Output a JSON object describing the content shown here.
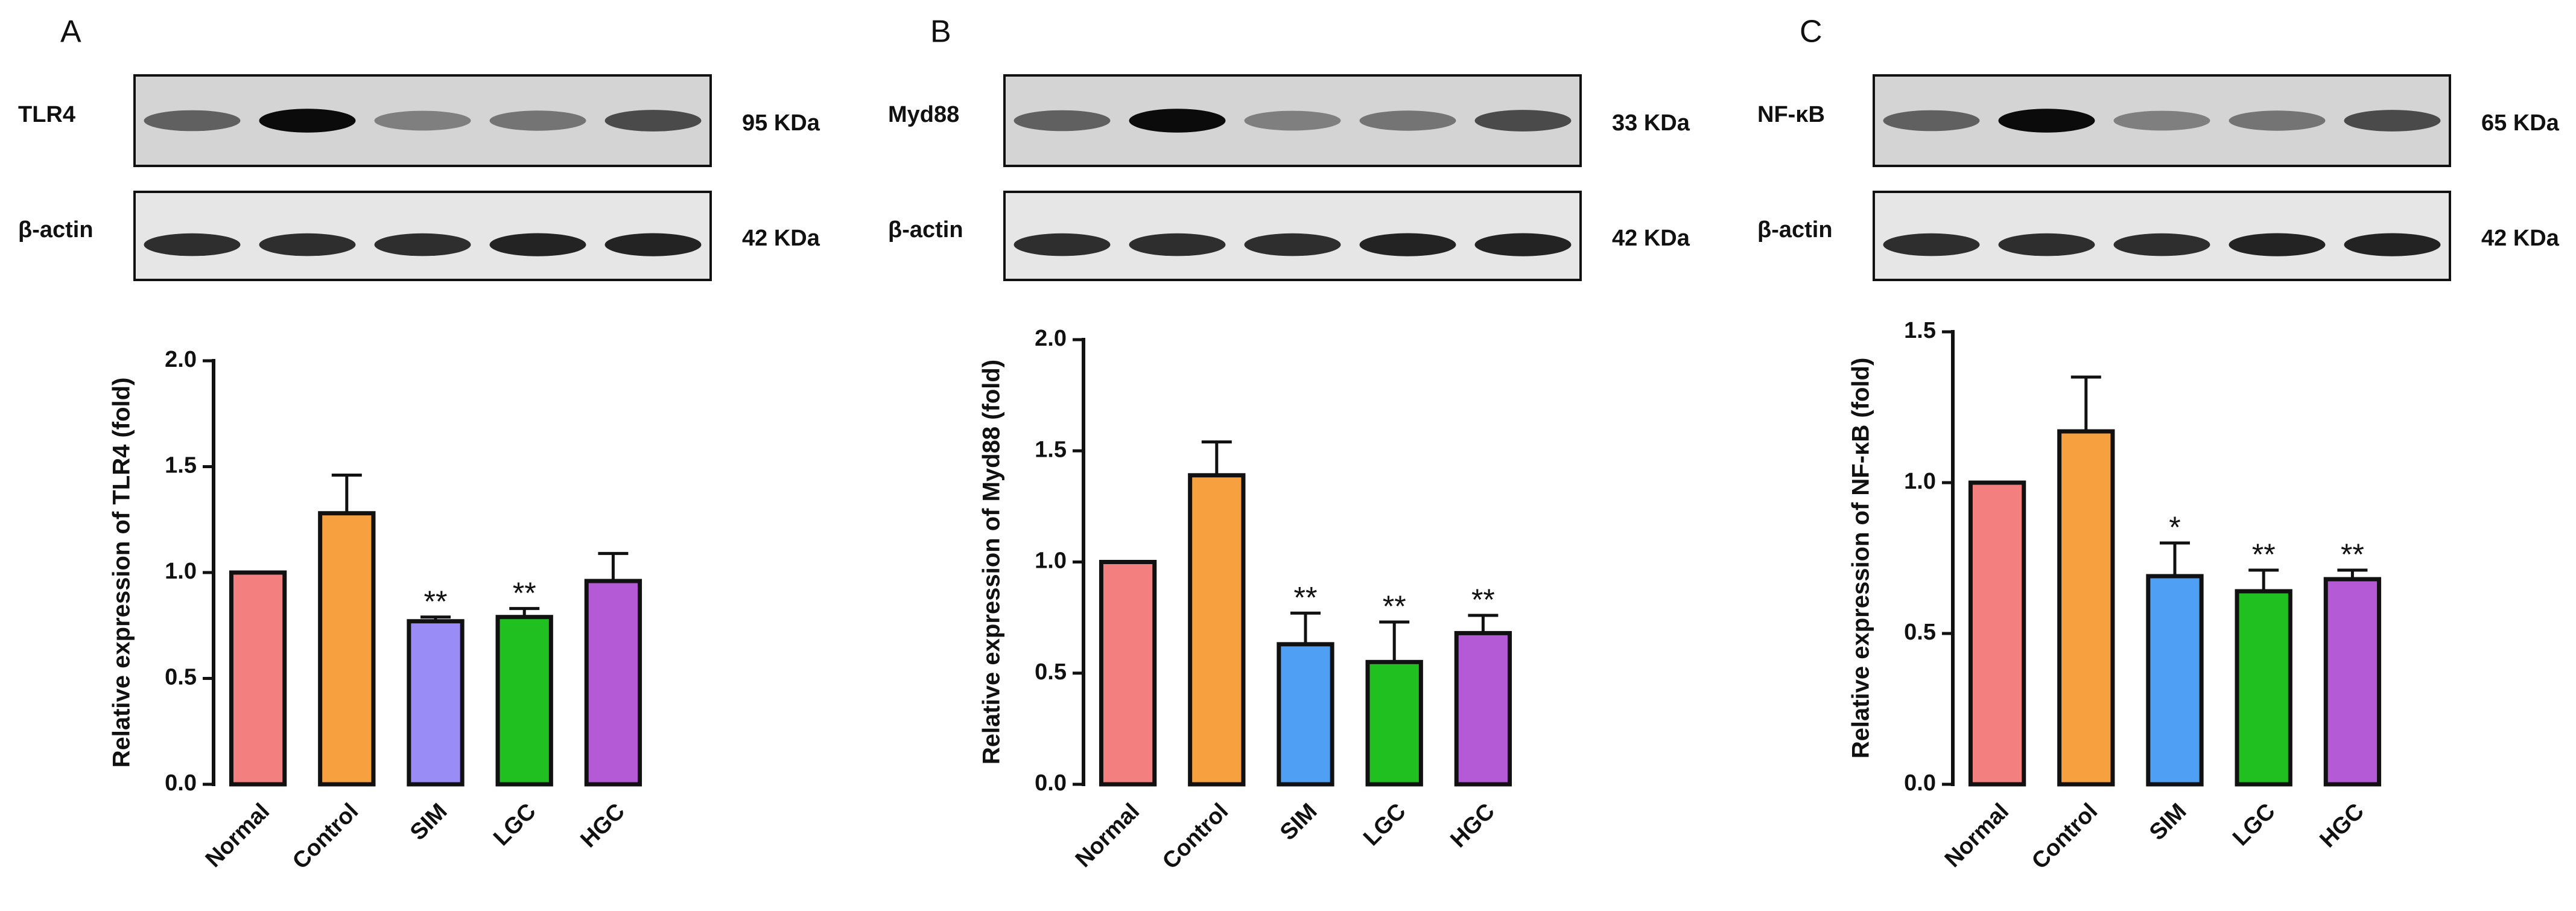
{
  "chart_data": [
    {
      "type": "bar",
      "panel": "A",
      "blots": [
        {
          "label": "TLR4",
          "size": "95 KDa"
        },
        {
          "label": "β-actin",
          "size": "42 KDa"
        }
      ],
      "y_label": "Relative expression of TLR4 (fold)",
      "categories": [
        "Normal",
        "Control",
        "SIM",
        "LGC",
        "HGC"
      ],
      "values": [
        1.0,
        1.28,
        0.77,
        0.79,
        0.96
      ],
      "errors": [
        0,
        0.18,
        0.02,
        0.04,
        0.13
      ],
      "significance": [
        null,
        null,
        "**",
        "**",
        null
      ],
      "colors": [
        "#f47f7f",
        "#f7a040",
        "#9a8cf7",
        "#20c020",
        "#b45ad6"
      ],
      "ylim": [
        0,
        2
      ],
      "yticks": [
        {
          "value": 0,
          "label": "0.0"
        },
        0.5,
        {
          "value": 1,
          "label": "1.0"
        },
        1.5,
        {
          "value": 2,
          "label": "2.0"
        }
      ]
    },
    {
      "type": "bar",
      "panel": "B",
      "blots": [
        {
          "label": "Myd88",
          "size": "33 KDa"
        },
        {
          "label": "β-actin",
          "size": "42 KDa"
        }
      ],
      "y_label": "Relative expression of Myd88 (fold)",
      "categories": [
        "Normal",
        "Control",
        "SIM",
        "LGC",
        "HGC"
      ],
      "values": [
        1.0,
        1.39,
        0.63,
        0.55,
        0.68
      ],
      "errors": [
        0,
        0.15,
        0.14,
        0.18,
        0.08
      ],
      "significance": [
        null,
        null,
        "**",
        "**",
        "**"
      ],
      "colors": [
        "#f47f7f",
        "#f7a040",
        "#4fa0f4",
        "#20c020",
        "#b45ad6"
      ],
      "ylim": [
        0,
        2
      ],
      "yticks": [
        {
          "value": 0,
          "label": "0.0"
        },
        0.5,
        {
          "value": 1,
          "label": "1.0"
        },
        1.5,
        {
          "value": 2,
          "label": "2.0"
        }
      ]
    },
    {
      "type": "bar",
      "panel": "C",
      "blots": [
        {
          "label": "NF-κB",
          "size": "65 KDa"
        },
        {
          "label": "β-actin",
          "size": "42 KDa"
        }
      ],
      "y_label": "Relative expression of NF-κB (fold)",
      "categories": [
        "Normal",
        "Control",
        "SIM",
        "LGC",
        "HGC"
      ],
      "values": [
        1.0,
        1.17,
        0.69,
        0.64,
        0.68
      ],
      "errors": [
        0,
        0.18,
        0.11,
        0.07,
        0.03
      ],
      "significance": [
        null,
        null,
        "*",
        "**",
        "**"
      ],
      "colors": [
        "#f47f7f",
        "#f7a040",
        "#4fa0f4",
        "#20c020",
        "#b45ad6"
      ],
      "ylim": [
        0,
        1.5
      ],
      "yticks": [
        {
          "value": 0,
          "label": "0.0"
        },
        0.5,
        {
          "value": 1,
          "label": "1.0"
        },
        1.5
      ]
    }
  ]
}
